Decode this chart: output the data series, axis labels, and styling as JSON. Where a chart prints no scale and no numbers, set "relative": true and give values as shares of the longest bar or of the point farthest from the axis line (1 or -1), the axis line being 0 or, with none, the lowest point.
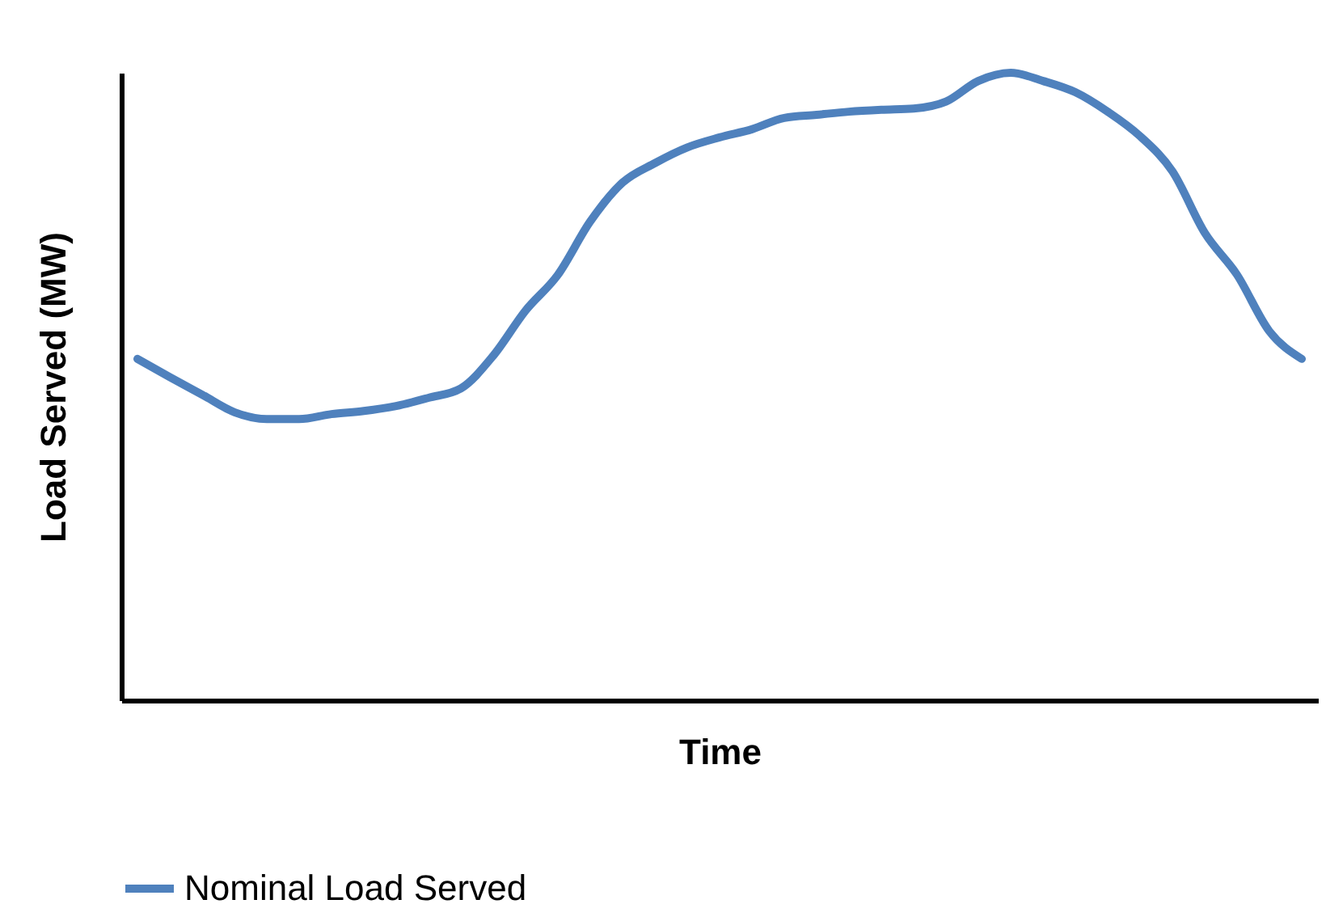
{
  "chart_data": {
    "type": "line",
    "xlabel": "Time",
    "ylabel": "Load Served (MW)",
    "relative": true,
    "legend": "bottom",
    "categories": [
      null,
      null,
      null,
      null,
      null,
      null,
      null,
      null,
      null,
      null,
      null,
      null,
      null,
      null,
      null,
      null,
      null,
      null,
      null,
      null,
      null,
      null,
      null,
      null,
      null,
      null,
      null,
      null,
      null,
      null,
      null,
      null,
      null,
      null,
      null,
      null,
      null
    ],
    "series": [
      {
        "name": "Nominal Load Served",
        "color": "#4f81bd",
        "values": [
          0.544,
          0.515,
          0.487,
          0.459,
          0.448,
          0.448,
          0.456,
          0.461,
          0.469,
          0.482,
          0.497,
          0.549,
          0.621,
          0.678,
          0.763,
          0.825,
          0.856,
          0.881,
          0.897,
          0.91,
          0.928,
          0.933,
          0.938,
          0.941,
          0.943,
          0.954,
          0.987,
          1,
          0.987,
          0.969,
          0.938,
          0.899,
          0.843,
          0.745,
          0.678,
          0.588,
          0.544
        ]
      }
    ]
  }
}
